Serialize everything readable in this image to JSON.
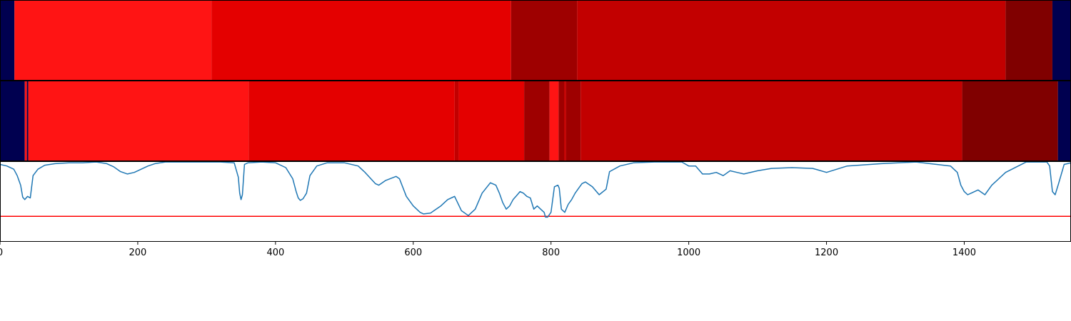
{
  "chart_data": [
    {
      "type": "heatmap",
      "panel": "top-track",
      "xlim": [
        0,
        1555
      ],
      "segments": [
        {
          "start": 0,
          "end": 21,
          "color": "#000050"
        },
        {
          "start": 21,
          "end": 307,
          "color": "#ff1414"
        },
        {
          "start": 307,
          "end": 742,
          "color": "#e40000"
        },
        {
          "start": 742,
          "end": 838,
          "color": "#9e0000"
        },
        {
          "start": 838,
          "end": 1460,
          "color": "#c20000"
        },
        {
          "start": 1460,
          "end": 1528,
          "color": "#800000"
        },
        {
          "start": 1528,
          "end": 1555,
          "color": "#000050"
        }
      ]
    },
    {
      "type": "heatmap",
      "panel": "middle-track",
      "xlim": [
        0,
        1555
      ],
      "segments": [
        {
          "start": 0,
          "end": 36,
          "color": "#000050"
        },
        {
          "start": 36,
          "end": 39,
          "color": "#ff1414"
        },
        {
          "start": 39,
          "end": 41,
          "color": "#000050"
        },
        {
          "start": 41,
          "end": 361,
          "color": "#ff1414"
        },
        {
          "start": 361,
          "end": 660,
          "color": "#e40000"
        },
        {
          "start": 660,
          "end": 666,
          "color": "#c20000"
        },
        {
          "start": 666,
          "end": 761,
          "color": "#e40000"
        },
        {
          "start": 761,
          "end": 798,
          "color": "#9e0000"
        },
        {
          "start": 798,
          "end": 811,
          "color": "#ff1414"
        },
        {
          "start": 811,
          "end": 819,
          "color": "#9e0000"
        },
        {
          "start": 819,
          "end": 822,
          "color": "#c20000"
        },
        {
          "start": 822,
          "end": 843,
          "color": "#9e0000"
        },
        {
          "start": 843,
          "end": 1397,
          "color": "#c20000"
        },
        {
          "start": 1397,
          "end": 1536,
          "color": "#800000"
        },
        {
          "start": 1536,
          "end": 1555,
          "color": "#000050"
        }
      ]
    },
    {
      "type": "line",
      "panel": "signal",
      "xlim": [
        0,
        1555
      ],
      "ylim": [
        0,
        1
      ],
      "xticks": [
        0,
        200,
        400,
        600,
        800,
        1000,
        1200,
        1400
      ],
      "xlabel": "",
      "ylabel": "",
      "grid": false,
      "line_color": "#1f77b4",
      "threshold": {
        "y": 0.31,
        "color": "#ff0000"
      },
      "series": [
        {
          "x": [
            0,
            10,
            20,
            25,
            30,
            33,
            36,
            40,
            44,
            48,
            55,
            65,
            80,
            100,
            120,
            140,
            155,
            165,
            175,
            185,
            195,
            205,
            215,
            225,
            240,
            260,
            290,
            320,
            340,
            346,
            348,
            350,
            352,
            355,
            360,
            380,
            400,
            415,
            425,
            430,
            433,
            436,
            440,
            445,
            450,
            460,
            475,
            500,
            520,
            530,
            545,
            550,
            560,
            575,
            580,
            590,
            600,
            610,
            615,
            625,
            630,
            640,
            650,
            660,
            670,
            680,
            690,
            700,
            712,
            720,
            725,
            730,
            735,
            740,
            745,
            750,
            755,
            760,
            765,
            770,
            775,
            780,
            785,
            790,
            792,
            795,
            800,
            805,
            810,
            812,
            815,
            820,
            825,
            830,
            835,
            840,
            845,
            850,
            860,
            870,
            880,
            885,
            900,
            920,
            950,
            990,
            1000,
            1010,
            1020,
            1030,
            1040,
            1050,
            1060,
            1070,
            1080,
            1100,
            1120,
            1150,
            1180,
            1200,
            1230,
            1280,
            1330,
            1380,
            1390,
            1395,
            1400,
            1405,
            1410,
            1420,
            1430,
            1440,
            1460,
            1490,
            1500,
            1520,
            1524,
            1528,
            1532,
            1537,
            1545,
            1555
          ],
          "y": [
            0.96,
            0.94,
            0.9,
            0.82,
            0.7,
            0.55,
            0.52,
            0.56,
            0.54,
            0.82,
            0.9,
            0.95,
            0.97,
            0.98,
            0.98,
            0.99,
            0.97,
            0.93,
            0.87,
            0.84,
            0.86,
            0.9,
            0.94,
            0.97,
            0.99,
            0.99,
            0.99,
            0.99,
            0.98,
            0.8,
            0.6,
            0.52,
            0.58,
            0.96,
            0.98,
            0.99,
            0.98,
            0.92,
            0.78,
            0.62,
            0.54,
            0.51,
            0.53,
            0.6,
            0.82,
            0.94,
            0.98,
            0.98,
            0.94,
            0.86,
            0.72,
            0.7,
            0.76,
            0.81,
            0.78,
            0.56,
            0.44,
            0.36,
            0.34,
            0.35,
            0.38,
            0.44,
            0.52,
            0.56,
            0.38,
            0.32,
            0.4,
            0.6,
            0.73,
            0.7,
            0.6,
            0.48,
            0.4,
            0.44,
            0.52,
            0.57,
            0.62,
            0.6,
            0.56,
            0.54,
            0.4,
            0.44,
            0.4,
            0.36,
            0.3,
            0.3,
            0.36,
            0.68,
            0.7,
            0.66,
            0.4,
            0.36,
            0.46,
            0.52,
            0.6,
            0.66,
            0.72,
            0.74,
            0.68,
            0.58,
            0.65,
            0.87,
            0.94,
            0.98,
            0.99,
            0.99,
            0.94,
            0.94,
            0.84,
            0.84,
            0.86,
            0.82,
            0.88,
            0.86,
            0.84,
            0.88,
            0.91,
            0.92,
            0.91,
            0.86,
            0.94,
            0.97,
            0.99,
            0.94,
            0.86,
            0.7,
            0.62,
            0.58,
            0.6,
            0.64,
            0.58,
            0.7,
            0.86,
            0.99,
            0.99,
            0.99,
            0.94,
            0.62,
            0.58,
            0.72,
            0.96,
            0.98
          ]
        }
      ]
    }
  ]
}
